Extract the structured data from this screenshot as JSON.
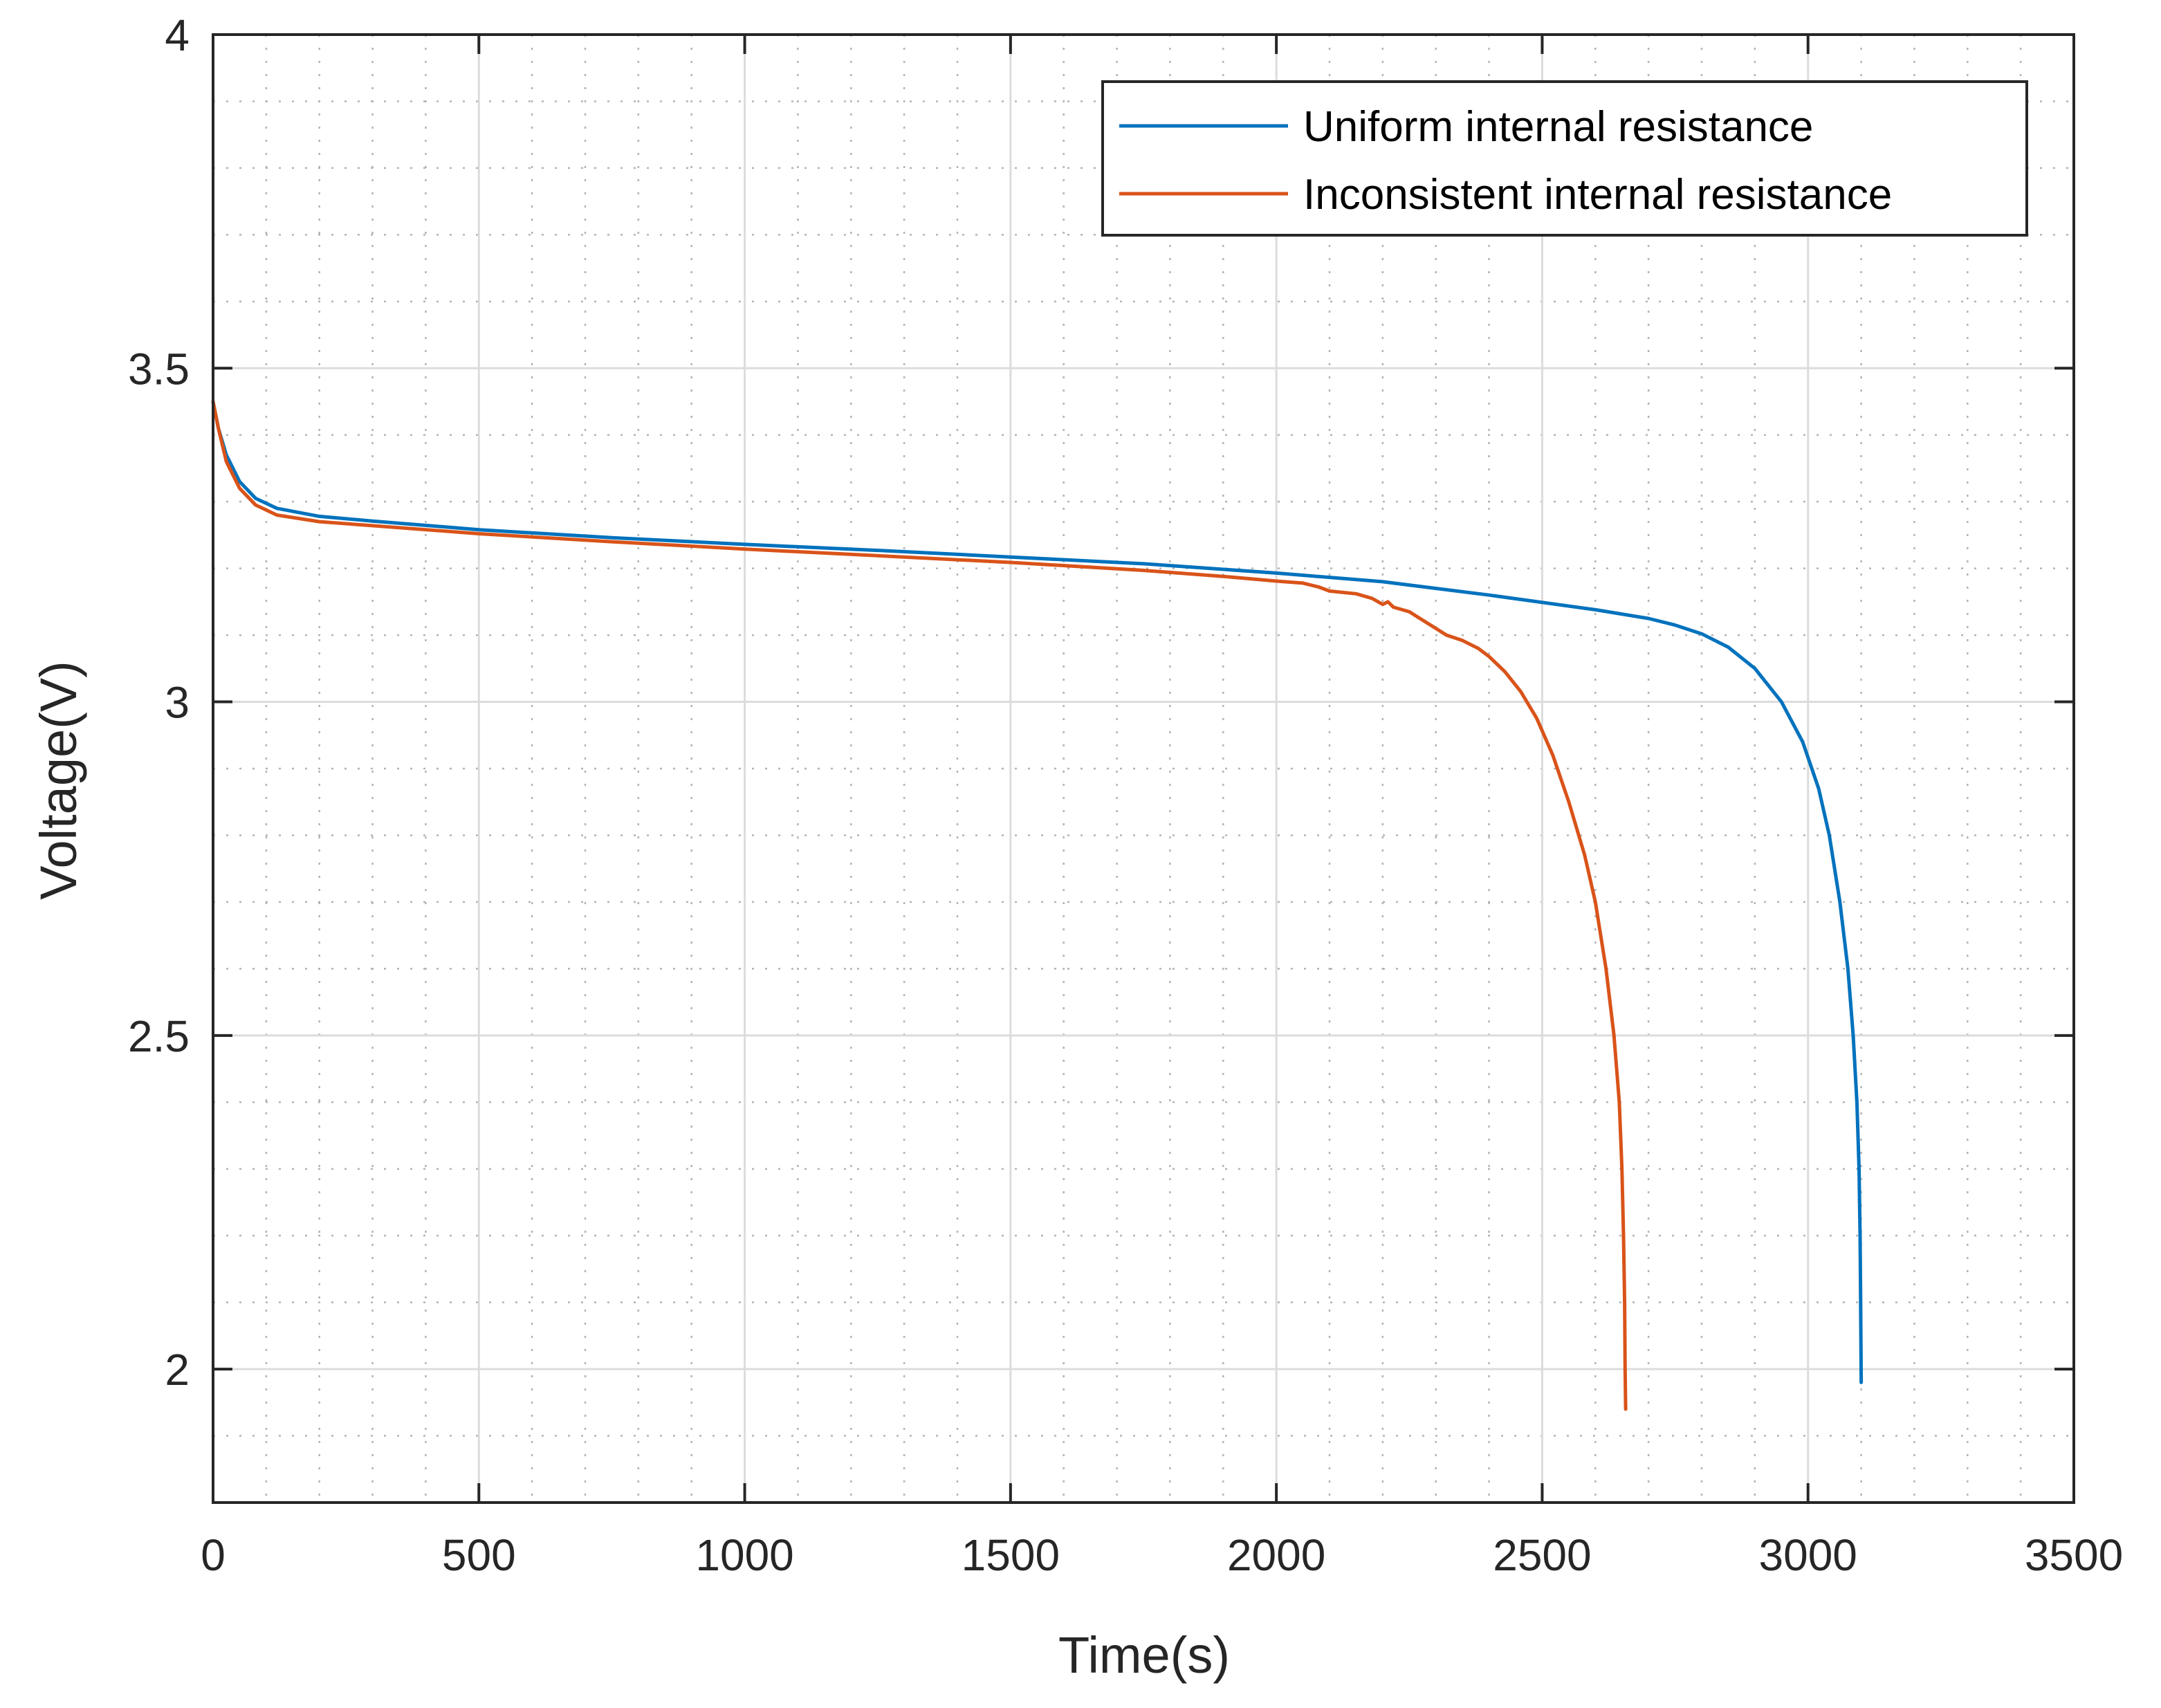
{
  "chart_data": {
    "type": "line",
    "xlabel": "Time(s)",
    "ylabel": "Voltage(V)",
    "xlim": [
      0,
      3500
    ],
    "ylim": [
      1.8,
      4
    ],
    "xticks": [
      0,
      500,
      1000,
      1500,
      2000,
      2500,
      3000,
      3500
    ],
    "xtick_labels": [
      "0",
      "500",
      "1000",
      "1500",
      "2000",
      "2500",
      "3000",
      "3500"
    ],
    "yticks": [
      2,
      2.5,
      3,
      3.5,
      4
    ],
    "ytick_labels": [
      "2",
      "2.5",
      "3",
      "3.5",
      "4"
    ],
    "grid": true,
    "minor_grid": true,
    "legend_position": "top-right",
    "series": [
      {
        "name": "Uniform internal resistance",
        "color": "#0072BD",
        "points": [
          [
            0,
            3.45
          ],
          [
            10,
            3.41
          ],
          [
            25,
            3.37
          ],
          [
            50,
            3.33
          ],
          [
            80,
            3.305
          ],
          [
            120,
            3.29
          ],
          [
            200,
            3.278
          ],
          [
            300,
            3.271
          ],
          [
            500,
            3.258
          ],
          [
            750,
            3.246
          ],
          [
            1000,
            3.236
          ],
          [
            1250,
            3.227
          ],
          [
            1500,
            3.217
          ],
          [
            1750,
            3.207
          ],
          [
            2000,
            3.193
          ],
          [
            2200,
            3.18
          ],
          [
            2400,
            3.16
          ],
          [
            2600,
            3.138
          ],
          [
            2700,
            3.125
          ],
          [
            2750,
            3.115
          ],
          [
            2800,
            3.102
          ],
          [
            2850,
            3.082
          ],
          [
            2900,
            3.05
          ],
          [
            2950,
            3.0
          ],
          [
            2990,
            2.94
          ],
          [
            3020,
            2.87
          ],
          [
            3040,
            2.8
          ],
          [
            3060,
            2.7
          ],
          [
            3075,
            2.6
          ],
          [
            3085,
            2.5
          ],
          [
            3092,
            2.4
          ],
          [
            3096,
            2.3
          ],
          [
            3098,
            2.2
          ],
          [
            3099,
            2.1
          ],
          [
            3100,
            1.98
          ]
        ]
      },
      {
        "name": "Inconsistent internal resistance",
        "color": "#D95319",
        "points": [
          [
            0,
            3.45
          ],
          [
            10,
            3.41
          ],
          [
            25,
            3.36
          ],
          [
            50,
            3.32
          ],
          [
            80,
            3.295
          ],
          [
            120,
            3.28
          ],
          [
            200,
            3.27
          ],
          [
            300,
            3.264
          ],
          [
            500,
            3.252
          ],
          [
            750,
            3.24
          ],
          [
            1000,
            3.229
          ],
          [
            1250,
            3.219
          ],
          [
            1500,
            3.209
          ],
          [
            1750,
            3.197
          ],
          [
            1900,
            3.188
          ],
          [
            2000,
            3.181
          ],
          [
            2050,
            3.178
          ],
          [
            2080,
            3.172
          ],
          [
            2100,
            3.166
          ],
          [
            2150,
            3.162
          ],
          [
            2180,
            3.155
          ],
          [
            2200,
            3.146
          ],
          [
            2210,
            3.15
          ],
          [
            2220,
            3.142
          ],
          [
            2250,
            3.135
          ],
          [
            2280,
            3.12
          ],
          [
            2300,
            3.11
          ],
          [
            2320,
            3.1
          ],
          [
            2350,
            3.092
          ],
          [
            2380,
            3.08
          ],
          [
            2400,
            3.068
          ],
          [
            2430,
            3.045
          ],
          [
            2460,
            3.015
          ],
          [
            2490,
            2.975
          ],
          [
            2520,
            2.92
          ],
          [
            2550,
            2.85
          ],
          [
            2580,
            2.77
          ],
          [
            2600,
            2.7
          ],
          [
            2620,
            2.6
          ],
          [
            2635,
            2.5
          ],
          [
            2645,
            2.4
          ],
          [
            2650,
            2.3
          ],
          [
            2653,
            2.2
          ],
          [
            2655,
            2.1
          ],
          [
            2656,
            2.0
          ],
          [
            2657,
            1.94
          ]
        ]
      }
    ]
  }
}
